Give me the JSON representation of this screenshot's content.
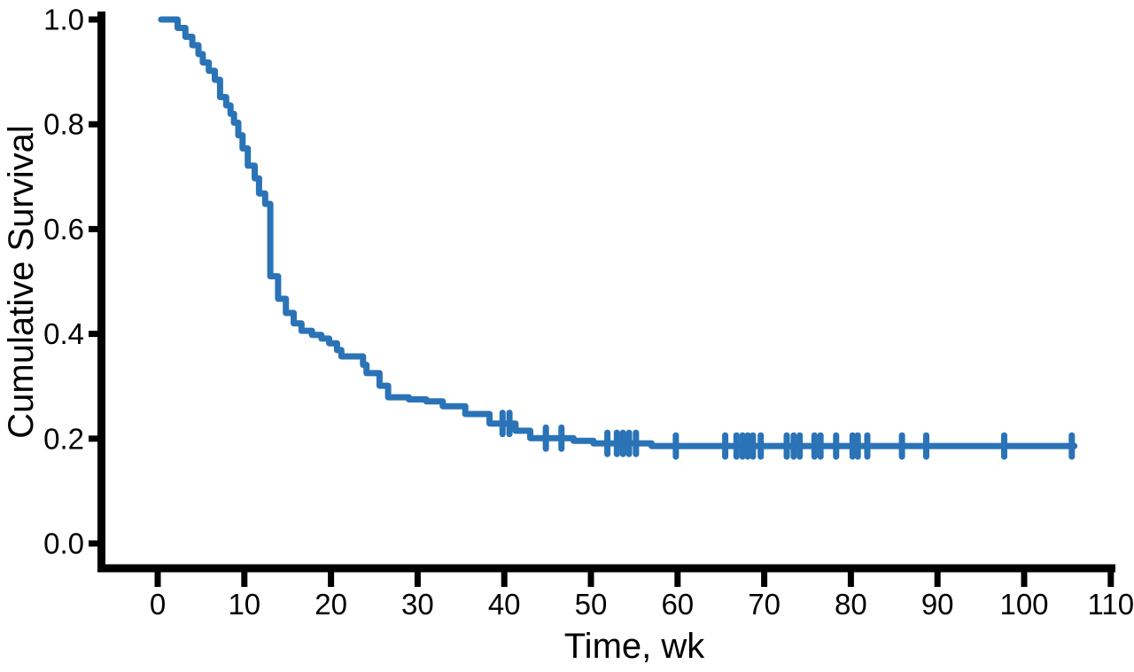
{
  "chart_data": {
    "type": "line",
    "subtype": "kaplan-meier-step-curve",
    "title": "",
    "xlabel": "Time, wk",
    "ylabel": "Cumulative Survival",
    "xlim": [
      0,
      110
    ],
    "ylim": [
      0.0,
      1.0
    ],
    "x_ticks": [
      0,
      10,
      20,
      30,
      40,
      50,
      60,
      70,
      80,
      90,
      100,
      110
    ],
    "x_tick_labels": [
      "0",
      "10",
      "20",
      "30",
      "40",
      "50",
      "60",
      "70",
      "80",
      "90",
      "100",
      "110"
    ],
    "y_ticks": [
      0.0,
      0.2,
      0.4,
      0.6,
      0.8,
      1.0
    ],
    "y_tick_labels": [
      "0.0",
      "0.2",
      "0.4",
      "0.6",
      "0.8",
      "1.0"
    ],
    "grid": false,
    "legend": "none",
    "colors": {
      "line": "#2a73b6",
      "axis": "#000000",
      "background": "#ffffff"
    },
    "series": [
      {
        "name": "cumulative-survival",
        "start": {
          "t": 0.4,
          "s": 1.0
        },
        "end_t": 105.8,
        "steps": [
          [
            2.3,
            0.984
          ],
          [
            3.2,
            0.967
          ],
          [
            4.0,
            0.951
          ],
          [
            4.7,
            0.934
          ],
          [
            5.2,
            0.918
          ],
          [
            5.9,
            0.902
          ],
          [
            6.6,
            0.885
          ],
          [
            7.2,
            0.852
          ],
          [
            7.9,
            0.836
          ],
          [
            8.4,
            0.82
          ],
          [
            8.8,
            0.803
          ],
          [
            9.3,
            0.779
          ],
          [
            9.8,
            0.754
          ],
          [
            10.4,
            0.721
          ],
          [
            11.2,
            0.697
          ],
          [
            11.7,
            0.668
          ],
          [
            12.4,
            0.648
          ],
          [
            13.0,
            0.51
          ],
          [
            13.9,
            0.467
          ],
          [
            14.8,
            0.44
          ],
          [
            15.7,
            0.42
          ],
          [
            16.6,
            0.406
          ],
          [
            17.8,
            0.398
          ],
          [
            18.9,
            0.391
          ],
          [
            19.8,
            0.382
          ],
          [
            20.7,
            0.369
          ],
          [
            21.2,
            0.357
          ],
          [
            23.7,
            0.341
          ],
          [
            24.1,
            0.325
          ],
          [
            25.6,
            0.301
          ],
          [
            26.6,
            0.279
          ],
          [
            29.0,
            0.275
          ],
          [
            31.0,
            0.271
          ],
          [
            32.9,
            0.262
          ],
          [
            35.5,
            0.247
          ],
          [
            38.3,
            0.229
          ],
          [
            41.3,
            0.215
          ],
          [
            43.0,
            0.201
          ],
          [
            48.0,
            0.196
          ],
          [
            50.3,
            0.191
          ],
          [
            57.0,
            0.186
          ]
        ],
        "censored": [
          [
            39.8,
            0.229
          ],
          [
            40.6,
            0.229
          ],
          [
            44.8,
            0.201
          ],
          [
            46.6,
            0.201
          ],
          [
            51.9,
            0.191
          ],
          [
            53.0,
            0.191
          ],
          [
            53.7,
            0.191
          ],
          [
            54.4,
            0.191
          ],
          [
            55.2,
            0.191
          ],
          [
            59.8,
            0.186
          ],
          [
            65.5,
            0.186
          ],
          [
            66.8,
            0.186
          ],
          [
            67.5,
            0.186
          ],
          [
            68.1,
            0.186
          ],
          [
            68.7,
            0.186
          ],
          [
            69.6,
            0.186
          ],
          [
            72.6,
            0.186
          ],
          [
            73.4,
            0.186
          ],
          [
            74.1,
            0.186
          ],
          [
            75.8,
            0.186
          ],
          [
            76.5,
            0.186
          ],
          [
            78.3,
            0.186
          ],
          [
            80.2,
            0.186
          ],
          [
            80.8,
            0.186
          ],
          [
            81.9,
            0.186
          ],
          [
            85.9,
            0.186
          ],
          [
            88.7,
            0.186
          ],
          [
            97.7,
            0.186
          ],
          [
            105.5,
            0.186
          ]
        ]
      }
    ]
  }
}
